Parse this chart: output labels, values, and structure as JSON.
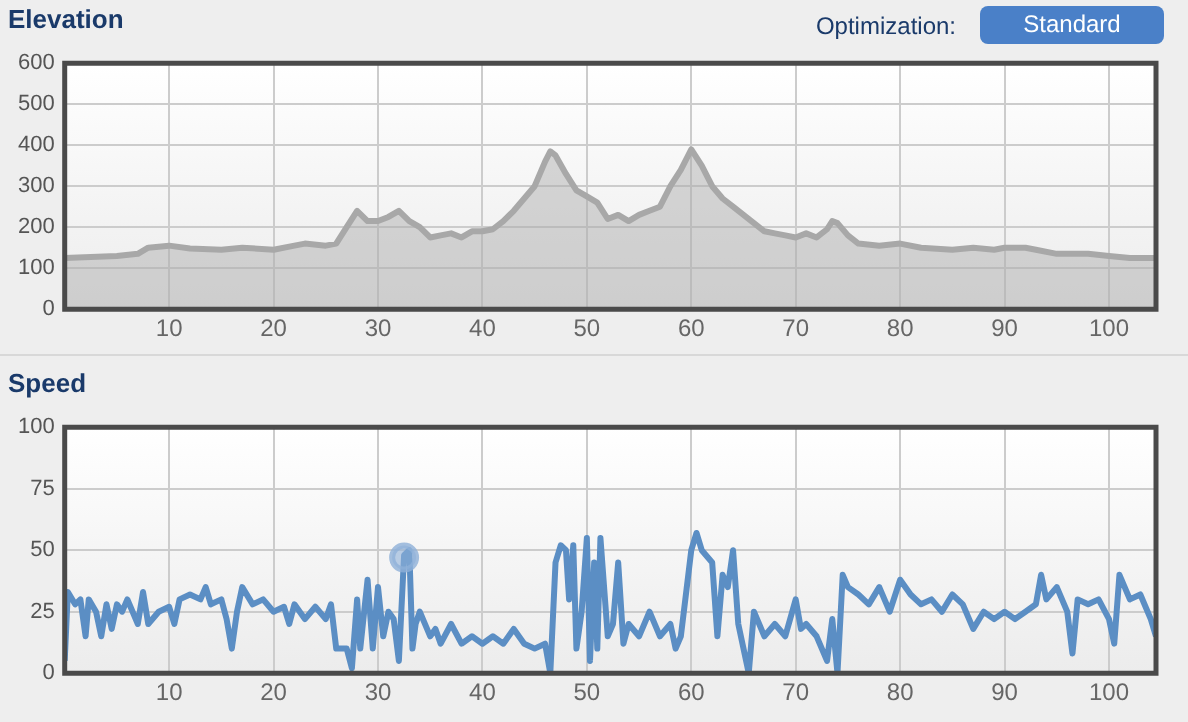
{
  "chart_data": [
    {
      "type": "area",
      "title": "Elevation",
      "annotations": [
        "Optimization:",
        "Standard"
      ],
      "color": "#a8a8a8",
      "marker": "none",
      "grid": true,
      "x": [
        0,
        5,
        7,
        8,
        10,
        12,
        15,
        17,
        20,
        22,
        23,
        25,
        26,
        27,
        28,
        29,
        30,
        31,
        32,
        33,
        34,
        35,
        36,
        37,
        38,
        39,
        40,
        41,
        42,
        43,
        44,
        45,
        46,
        46.5,
        47,
        48,
        49,
        50,
        51,
        52,
        53,
        54,
        55,
        56,
        57,
        58,
        59,
        60,
        61,
        62,
        63,
        64,
        65,
        66,
        67,
        68,
        69,
        70,
        71,
        72,
        73,
        73.5,
        74,
        75,
        76,
        78,
        80,
        82,
        85,
        87,
        89,
        90,
        92,
        93,
        95,
        98,
        100,
        102,
        104.5
      ],
      "values": [
        125,
        130,
        135,
        150,
        155,
        148,
        145,
        150,
        145,
        155,
        160,
        155,
        160,
        200,
        240,
        215,
        215,
        225,
        240,
        215,
        200,
        175,
        180,
        185,
        175,
        190,
        190,
        195,
        215,
        240,
        270,
        300,
        360,
        385,
        375,
        330,
        290,
        275,
        260,
        220,
        230,
        215,
        230,
        240,
        250,
        300,
        340,
        390,
        350,
        300,
        270,
        250,
        230,
        210,
        190,
        185,
        180,
        175,
        185,
        175,
        195,
        215,
        210,
        180,
        160,
        155,
        160,
        150,
        145,
        150,
        145,
        150,
        150,
        145,
        135,
        135,
        130,
        125,
        125
      ],
      "xlim": [
        0,
        104.5
      ],
      "xticks": [
        10,
        20,
        30,
        40,
        50,
        60,
        70,
        80,
        90,
        100
      ],
      "ylim": [
        0,
        600
      ],
      "yticks": [
        0,
        100,
        200,
        300,
        400,
        500,
        600
      ]
    },
    {
      "type": "line",
      "title": "Speed",
      "marker": "none",
      "grid": true,
      "series": [
        {
          "color": "#5b8ec4",
          "x": [
            0,
            0.3,
            1,
            1.5,
            2,
            2.3,
            3,
            3.5,
            4,
            4.5,
            5,
            5.5,
            6,
            7,
            7.5,
            8,
            9,
            10,
            10.5,
            11,
            12,
            13,
            13.5,
            14,
            15,
            15.5,
            16,
            16.5,
            17,
            18,
            19,
            20,
            21,
            21.5,
            22,
            23,
            24,
            25,
            25.5,
            26,
            27,
            27.5,
            28,
            28.3,
            29,
            29.5,
            30,
            30.5,
            31,
            31.5,
            32,
            32.5,
            33,
            33.3,
            33.6,
            34,
            35,
            35.5,
            36,
            37,
            38,
            39,
            40,
            41,
            42,
            43,
            44,
            45,
            46,
            46.5,
            47,
            47.5,
            48,
            48.3,
            48.7,
            49,
            49.5,
            50,
            50.3,
            50.7,
            51,
            51.3,
            52,
            52.5,
            53,
            53.5,
            54,
            55,
            56,
            57,
            58,
            58.5,
            59,
            60,
            60.5,
            61,
            62,
            62.5,
            63,
            63.5,
            64,
            64.5,
            65,
            65.5,
            66,
            67,
            68,
            69,
            70,
            70.5,
            71,
            72,
            73,
            73.5,
            74,
            74.5,
            75,
            76,
            77,
            78,
            79,
            80,
            81,
            82,
            83,
            84,
            85,
            86,
            87,
            88,
            89,
            90,
            91,
            92,
            93,
            93.5,
            94,
            95,
            96,
            96.5,
            97,
            98,
            99,
            100,
            100.5,
            101,
            102,
            103,
            104,
            104.5
          ],
          "values": [
            5,
            33,
            28,
            30,
            15,
            30,
            25,
            15,
            28,
            18,
            28,
            25,
            30,
            20,
            33,
            20,
            25,
            27,
            20,
            30,
            32,
            30,
            35,
            28,
            30,
            22,
            10,
            25,
            35,
            28,
            30,
            25,
            27,
            20,
            28,
            22,
            27,
            22,
            28,
            10,
            10,
            2,
            30,
            10,
            38,
            10,
            35,
            15,
            25,
            22,
            5,
            48,
            50,
            10,
            20,
            25,
            15,
            18,
            12,
            20,
            12,
            15,
            12,
            15,
            12,
            18,
            12,
            10,
            12,
            0,
            45,
            52,
            50,
            30,
            52,
            10,
            25,
            55,
            5,
            45,
            10,
            55,
            15,
            20,
            45,
            12,
            20,
            15,
            25,
            15,
            20,
            10,
            15,
            50,
            57,
            50,
            45,
            15,
            40,
            35,
            50,
            20,
            10,
            0,
            25,
            15,
            20,
            15,
            30,
            18,
            20,
            15,
            5,
            22,
            0,
            40,
            35,
            32,
            28,
            35,
            25,
            38,
            32,
            28,
            30,
            25,
            32,
            28,
            18,
            25,
            22,
            25,
            22,
            25,
            28,
            40,
            30,
            35,
            25,
            8,
            30,
            28,
            30,
            22,
            12,
            40,
            30,
            32,
            22,
            15
          ]
        },
        {
          "type": "scatter",
          "marker": "circle",
          "color": "#8fb0d8",
          "x": [
            32.5
          ],
          "values": [
            47
          ]
        }
      ],
      "xlim": [
        0,
        104.5
      ],
      "xticks": [
        10,
        20,
        30,
        40,
        50,
        60,
        70,
        80,
        90,
        100
      ],
      "ylim": [
        0,
        100
      ],
      "yticks": [
        0,
        25,
        50,
        75,
        100
      ]
    }
  ]
}
